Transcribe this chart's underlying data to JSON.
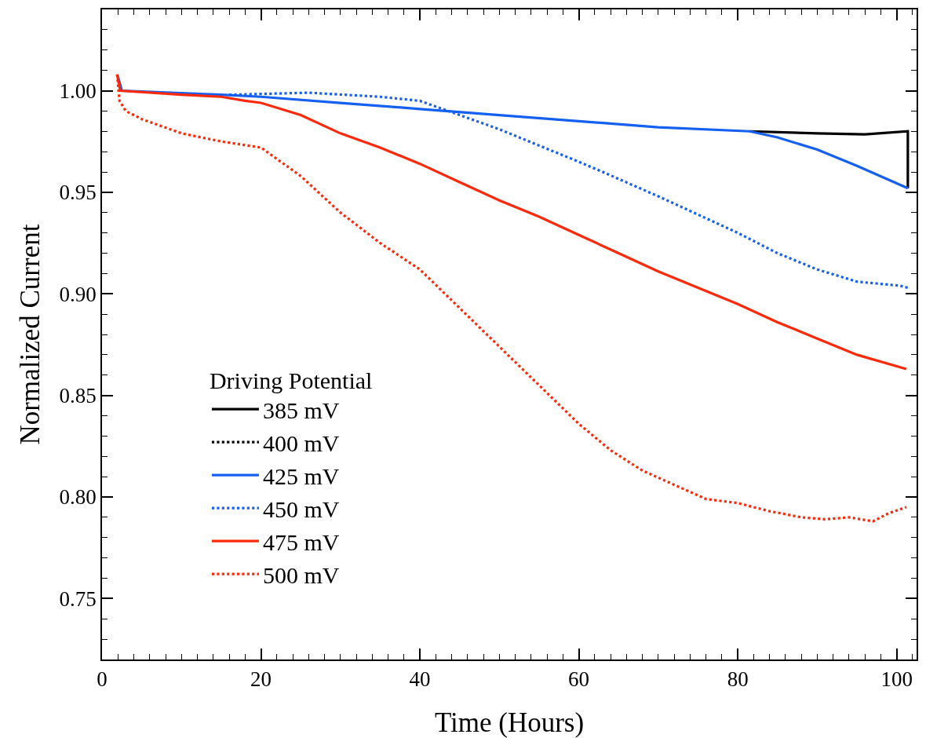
{
  "chart_data": {
    "type": "line",
    "xlabel": "Time (Hours)",
    "ylabel": "Normalized Current",
    "legend_title": "Driving Potential",
    "legend": "bottom left",
    "grid": false,
    "marker": "none",
    "xlim": [
      0,
      102.5
    ],
    "xticks": [
      0,
      20,
      40,
      60,
      80,
      100
    ],
    "ylim": [
      0.72,
      1.04
    ],
    "yticks": [
      {
        "value": 0.75,
        "label": "0.75"
      },
      {
        "value": 0.8,
        "label": "0.80"
      },
      {
        "value": 0.85,
        "label": "0.85"
      },
      {
        "value": 0.9,
        "label": "0.90"
      },
      {
        "value": 0.95,
        "label": "0.95"
      },
      {
        "value": 1.0,
        "label": "1.00"
      }
    ],
    "series": [
      {
        "name": "385 mV",
        "color": "#000000",
        "line_style": "solid",
        "x": [
          81.5,
          90,
          96,
          101.4,
          101.4
        ],
        "values": [
          0.98,
          0.979,
          0.9785,
          0.98,
          0.952
        ]
      },
      {
        "name": "400 mV",
        "color": "#000000",
        "line_style": "dotted"
      },
      {
        "name": "425 mV",
        "color": "#1560f0",
        "line_style": "solid",
        "x": [
          2.0,
          2.5,
          15,
          20,
          30,
          40,
          50,
          60,
          70,
          81.5,
          85,
          90,
          95,
          101.4
        ],
        "values": [
          1.007,
          1.0,
          0.998,
          0.997,
          0.994,
          0.991,
          0.988,
          0.985,
          0.982,
          0.98,
          0.977,
          0.971,
          0.963,
          0.952
        ]
      },
      {
        "name": "450 mV",
        "color": "#1560f0",
        "line_style": "dotted",
        "x": [
          16,
          26,
          35,
          40,
          45,
          50,
          55,
          60,
          63,
          70,
          75,
          80,
          85,
          90,
          95,
          100.4,
          101.4
        ],
        "values": [
          0.998,
          0.999,
          0.997,
          0.995,
          0.988,
          0.981,
          0.973,
          0.965,
          0.96,
          0.948,
          0.939,
          0.93,
          0.92,
          0.912,
          0.906,
          0.904,
          0.903
        ]
      },
      {
        "name": "475 mV",
        "color": "#fa2a0a",
        "line_style": "solid",
        "x": [
          1.9,
          2.3,
          10,
          15,
          18,
          20,
          25,
          30,
          35,
          40,
          45,
          50,
          55,
          60,
          65,
          70,
          75,
          80,
          85,
          90,
          95,
          101.2
        ],
        "values": [
          1.008,
          1.0,
          0.998,
          0.997,
          0.995,
          0.994,
          0.988,
          0.979,
          0.972,
          0.964,
          0.955,
          0.946,
          0.938,
          0.929,
          0.92,
          0.911,
          0.903,
          0.895,
          0.886,
          0.878,
          0.87,
          0.863
        ]
      },
      {
        "name": "500 mV",
        "color": "#fa2a0a",
        "line_style": "dotted",
        "x": [
          1.9,
          2.2,
          3,
          5,
          10,
          15,
          20,
          25,
          30,
          35,
          40,
          45,
          50,
          55,
          60,
          64,
          68,
          72,
          76,
          80,
          84,
          88,
          91,
          94,
          97,
          99,
          101.2
        ],
        "values": [
          1.008,
          0.995,
          0.99,
          0.986,
          0.979,
          0.975,
          0.972,
          0.958,
          0.94,
          0.925,
          0.912,
          0.893,
          0.874,
          0.855,
          0.836,
          0.823,
          0.813,
          0.806,
          0.799,
          0.797,
          0.793,
          0.79,
          0.789,
          0.79,
          0.788,
          0.792,
          0.795
        ]
      }
    ]
  }
}
